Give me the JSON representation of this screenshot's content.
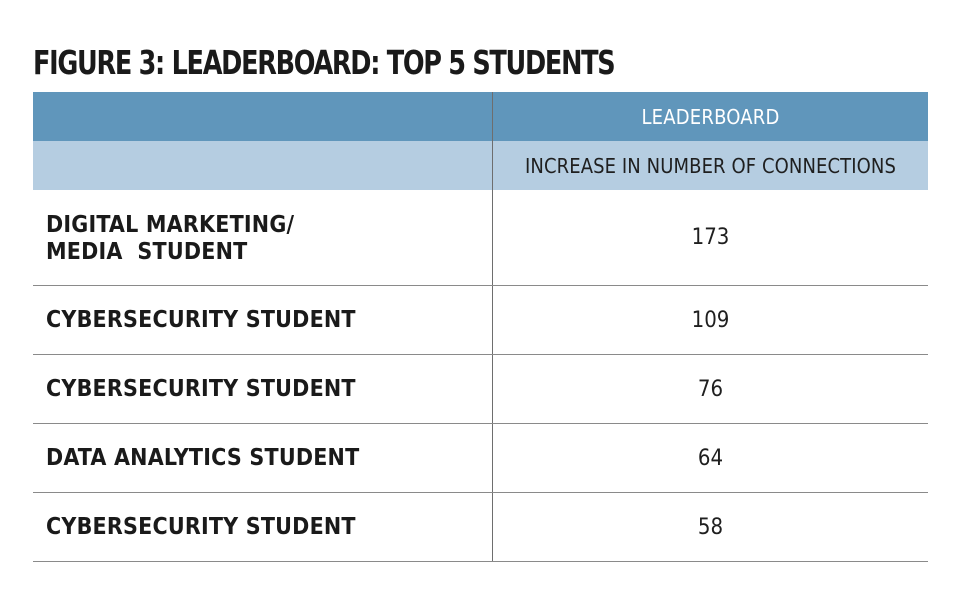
{
  "figure_title": "FIGURE 3: LEADERBOARD: TOP 5 STUDENTS",
  "header": {
    "group_label": "LEADERBOARD",
    "column_label": "INCREASE IN NUMBER OF CONNECTIONS"
  },
  "colors": {
    "header_dark": "#6096bb",
    "header_light": "#b5cde1",
    "rule": "#8a8a8a"
  },
  "chart_data": {
    "type": "table",
    "title": "FIGURE 3: LEADERBOARD: TOP 5 STUDENTS",
    "columns": [
      "",
      "INCREASE IN NUMBER OF CONNECTIONS"
    ],
    "header_group": "LEADERBOARD",
    "rows": [
      {
        "label_lines": [
          "DIGITAL MARKETING/",
          "MEDIA  STUDENT"
        ],
        "value": 173
      },
      {
        "label_lines": [
          "CYBERSECURITY STUDENT"
        ],
        "value": 109
      },
      {
        "label_lines": [
          "CYBERSECURITY STUDENT"
        ],
        "value": 76
      },
      {
        "label_lines": [
          "DATA ANALYTICS STUDENT"
        ],
        "value": 64
      },
      {
        "label_lines": [
          "CYBERSECURITY STUDENT"
        ],
        "value": 58
      }
    ]
  }
}
